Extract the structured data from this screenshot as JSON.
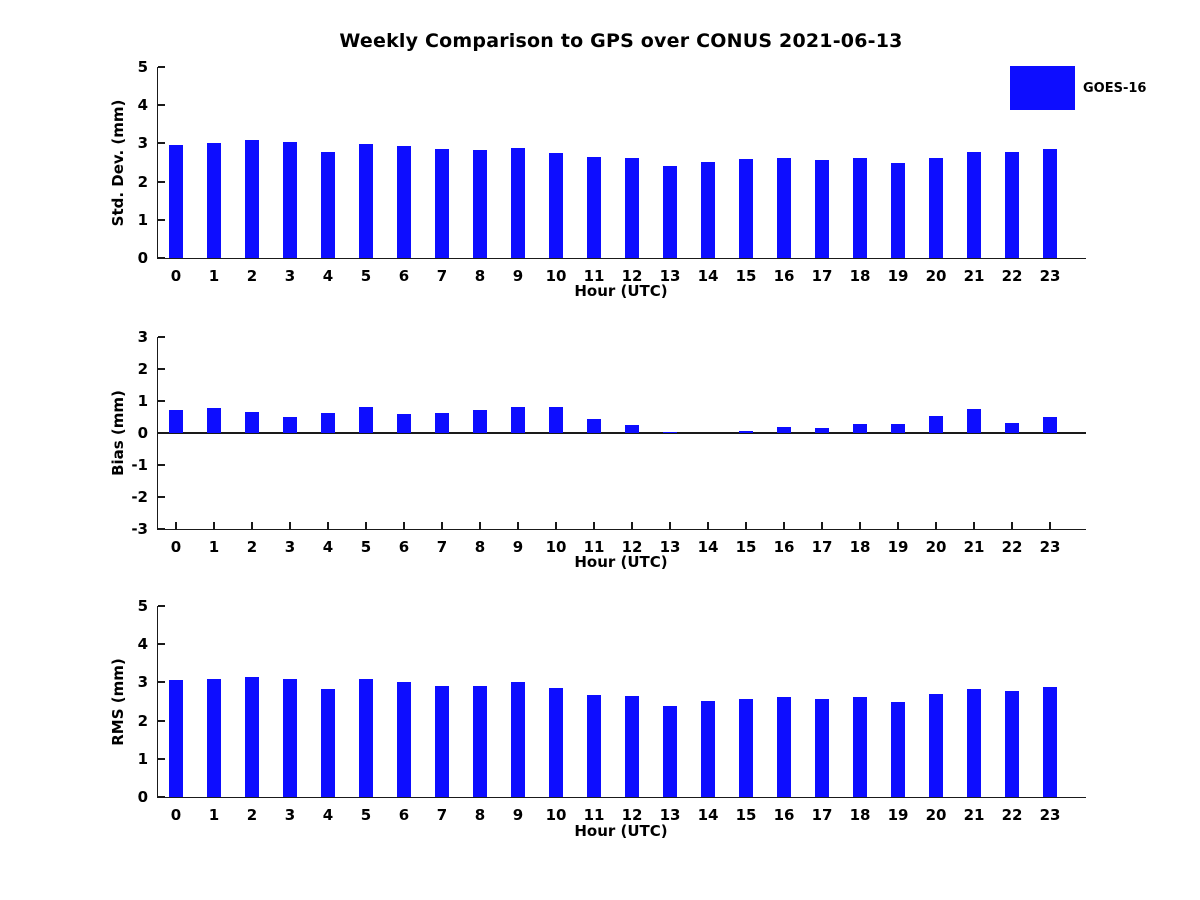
{
  "title": "Weekly Comparison to GPS over CONUS 2021-06-13",
  "legend": {
    "label": "GOES-16",
    "color": "#0d0dff",
    "position": "top-right"
  },
  "colors": {
    "bar": "#0d0dff",
    "axis": "#1a1a1a",
    "text": "#000000",
    "background": "#ffffff"
  },
  "chart_data": [
    {
      "type": "bar",
      "title": "",
      "ylabel": "Std. Dev. (mm)",
      "xlabel": "Hour (UTC)",
      "ylim": [
        0,
        5
      ],
      "yticks": [
        0,
        1,
        2,
        3,
        4,
        5
      ],
      "grid": false,
      "categories": [
        "0",
        "1",
        "2",
        "3",
        "4",
        "5",
        "6",
        "7",
        "8",
        "9",
        "10",
        "11",
        "12",
        "13",
        "14",
        "15",
        "16",
        "17",
        "18",
        "19",
        "20",
        "21",
        "22",
        "23"
      ],
      "series": [
        {
          "name": "GOES-16",
          "color": "#0d0dff",
          "values": [
            2.95,
            3.0,
            3.08,
            3.05,
            2.77,
            2.98,
            2.94,
            2.85,
            2.82,
            2.89,
            2.74,
            2.64,
            2.63,
            2.4,
            2.52,
            2.58,
            2.61,
            2.56,
            2.62,
            2.5,
            2.62,
            2.78,
            2.77,
            2.85
          ]
        }
      ]
    },
    {
      "type": "bar",
      "title": "",
      "ylabel": "Bias (mm)",
      "xlabel": "Hour (UTC)",
      "ylim": [
        -3,
        3
      ],
      "yticks": [
        3,
        2,
        1,
        0,
        -1,
        -2,
        -3
      ],
      "grid": false,
      "categories": [
        "0",
        "1",
        "2",
        "3",
        "4",
        "5",
        "6",
        "7",
        "8",
        "9",
        "10",
        "11",
        "12",
        "13",
        "14",
        "15",
        "16",
        "17",
        "18",
        "19",
        "20",
        "21",
        "22",
        "23"
      ],
      "series": [
        {
          "name": "GOES-16",
          "color": "#0d0dff",
          "values": [
            0.73,
            0.77,
            0.65,
            0.5,
            0.62,
            0.81,
            0.59,
            0.62,
            0.71,
            0.82,
            0.82,
            0.44,
            0.24,
            0.02,
            0.0,
            0.07,
            0.2,
            0.16,
            0.27,
            0.29,
            0.53,
            0.74,
            0.31,
            0.5
          ]
        }
      ]
    },
    {
      "type": "bar",
      "title": "",
      "ylabel": "RMS (mm)",
      "xlabel": "Hour (UTC)",
      "ylim": [
        0,
        5
      ],
      "yticks": [
        0,
        1,
        2,
        3,
        4,
        5
      ],
      "grid": false,
      "categories": [
        "0",
        "1",
        "2",
        "3",
        "4",
        "5",
        "6",
        "7",
        "8",
        "9",
        "10",
        "11",
        "12",
        "13",
        "14",
        "15",
        "16",
        "17",
        "18",
        "19",
        "20",
        "21",
        "22",
        "23"
      ],
      "series": [
        {
          "name": "GOES-16",
          "color": "#0d0dff",
          "values": [
            3.06,
            3.1,
            3.14,
            3.09,
            2.83,
            3.09,
            3.01,
            2.91,
            2.91,
            3.01,
            2.86,
            2.68,
            2.64,
            2.38,
            2.51,
            2.56,
            2.61,
            2.56,
            2.61,
            2.49,
            2.69,
            2.84,
            2.77,
            2.87
          ]
        }
      ]
    }
  ]
}
